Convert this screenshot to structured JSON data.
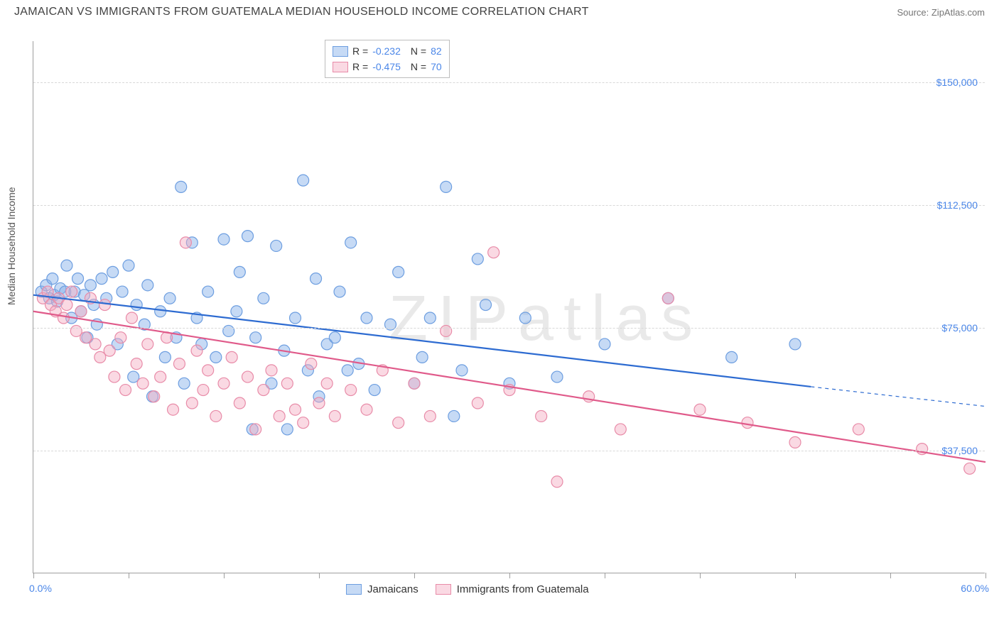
{
  "title": "JAMAICAN VS IMMIGRANTS FROM GUATEMALA MEDIAN HOUSEHOLD INCOME CORRELATION CHART",
  "source": "Source: ZipAtlas.com",
  "ylabel": "Median Household Income",
  "watermark": "ZIPatlas",
  "chart": {
    "type": "scatter",
    "xlim": [
      0.0,
      60.0
    ],
    "ylim": [
      0,
      162500
    ],
    "yticks": [
      37500,
      75000,
      112500,
      150000
    ],
    "ytick_labels": [
      "$37,500",
      "$75,000",
      "$112,500",
      "$150,000"
    ],
    "xticks": [
      0,
      6,
      12,
      18,
      24,
      30,
      36,
      42,
      48,
      54,
      60
    ],
    "xaxis_left_label": "0.0%",
    "xaxis_right_label": "60.0%",
    "background_color": "#ffffff",
    "grid_color": "#d8d8d8",
    "axis_color": "#9e9e9e",
    "text_color": "#555555",
    "value_color": "#4a86e8",
    "marker_radius": 8,
    "marker_stroke_width": 1.2,
    "trend_line_width": 2.2,
    "series": [
      {
        "name": "Jamaicans",
        "fill": "rgba(129,174,233,0.45)",
        "stroke": "#6d9ee0",
        "line_color": "#2d6bd1",
        "R": "-0.232",
        "N": "82",
        "trend": {
          "x1": 0,
          "y1": 85000,
          "x2": 49,
          "y2": 57000,
          "dash_x2": 60,
          "dash_y2": 51000
        },
        "points": [
          [
            0.5,
            86000
          ],
          [
            0.8,
            88000
          ],
          [
            1.0,
            84000
          ],
          [
            1.2,
            90000
          ],
          [
            1.3,
            85000
          ],
          [
            1.5,
            83000
          ],
          [
            1.7,
            87000
          ],
          [
            2.0,
            86000
          ],
          [
            2.1,
            94000
          ],
          [
            2.4,
            78000
          ],
          [
            2.6,
            86000
          ],
          [
            2.8,
            90000
          ],
          [
            3.0,
            80000
          ],
          [
            3.2,
            85000
          ],
          [
            3.4,
            72000
          ],
          [
            3.6,
            88000
          ],
          [
            3.8,
            82000
          ],
          [
            4.0,
            76000
          ],
          [
            4.3,
            90000
          ],
          [
            4.6,
            84000
          ],
          [
            5.0,
            92000
          ],
          [
            5.3,
            70000
          ],
          [
            5.6,
            86000
          ],
          [
            6.0,
            94000
          ],
          [
            6.3,
            60000
          ],
          [
            6.5,
            82000
          ],
          [
            7.0,
            76000
          ],
          [
            7.2,
            88000
          ],
          [
            7.5,
            54000
          ],
          [
            8.0,
            80000
          ],
          [
            8.3,
            66000
          ],
          [
            8.6,
            84000
          ],
          [
            9.0,
            72000
          ],
          [
            9.3,
            118000
          ],
          [
            9.5,
            58000
          ],
          [
            10.0,
            101000
          ],
          [
            10.3,
            78000
          ],
          [
            10.6,
            70000
          ],
          [
            11.0,
            86000
          ],
          [
            11.5,
            66000
          ],
          [
            12.0,
            102000
          ],
          [
            12.3,
            74000
          ],
          [
            12.8,
            80000
          ],
          [
            13.0,
            92000
          ],
          [
            13.5,
            103000
          ],
          [
            14.0,
            72000
          ],
          [
            14.5,
            84000
          ],
          [
            15.0,
            58000
          ],
          [
            15.3,
            100000
          ],
          [
            15.8,
            68000
          ],
          [
            16.0,
            44000
          ],
          [
            16.5,
            78000
          ],
          [
            17.0,
            120000
          ],
          [
            17.3,
            62000
          ],
          [
            17.8,
            90000
          ],
          [
            18.0,
            54000
          ],
          [
            18.5,
            70000
          ],
          [
            19.0,
            72000
          ],
          [
            19.3,
            86000
          ],
          [
            19.8,
            62000
          ],
          [
            20.0,
            101000
          ],
          [
            20.5,
            64000
          ],
          [
            21.0,
            78000
          ],
          [
            21.5,
            56000
          ],
          [
            22.5,
            76000
          ],
          [
            23.0,
            92000
          ],
          [
            24.0,
            58000
          ],
          [
            24.5,
            66000
          ],
          [
            25.0,
            78000
          ],
          [
            26.0,
            118000
          ],
          [
            26.5,
            48000
          ],
          [
            27.0,
            62000
          ],
          [
            28.0,
            96000
          ],
          [
            28.5,
            82000
          ],
          [
            30.0,
            58000
          ],
          [
            31.0,
            78000
          ],
          [
            33.0,
            60000
          ],
          [
            36.0,
            70000
          ],
          [
            40.0,
            84000
          ],
          [
            44.0,
            66000
          ],
          [
            48.0,
            70000
          ],
          [
            13.8,
            44000
          ]
        ]
      },
      {
        "name": "Immigrants from Guatemala",
        "fill": "rgba(244,170,192,0.45)",
        "stroke": "#e88ba8",
        "line_color": "#e05a8a",
        "R": "-0.475",
        "N": "70",
        "trend": {
          "x1": 0,
          "y1": 80000,
          "x2": 60,
          "y2": 34000
        },
        "points": [
          [
            0.6,
            84000
          ],
          [
            0.9,
            86000
          ],
          [
            1.1,
            82000
          ],
          [
            1.4,
            80000
          ],
          [
            1.6,
            84000
          ],
          [
            1.9,
            78000
          ],
          [
            2.1,
            82000
          ],
          [
            2.4,
            86000
          ],
          [
            2.7,
            74000
          ],
          [
            3.0,
            80000
          ],
          [
            3.3,
            72000
          ],
          [
            3.6,
            84000
          ],
          [
            3.9,
            70000
          ],
          [
            4.2,
            66000
          ],
          [
            4.5,
            82000
          ],
          [
            4.8,
            68000
          ],
          [
            5.1,
            60000
          ],
          [
            5.5,
            72000
          ],
          [
            5.8,
            56000
          ],
          [
            6.2,
            78000
          ],
          [
            6.5,
            64000
          ],
          [
            6.9,
            58000
          ],
          [
            7.2,
            70000
          ],
          [
            7.6,
            54000
          ],
          [
            8.0,
            60000
          ],
          [
            8.4,
            72000
          ],
          [
            8.8,
            50000
          ],
          [
            9.2,
            64000
          ],
          [
            9.6,
            101000
          ],
          [
            10.0,
            52000
          ],
          [
            10.3,
            68000
          ],
          [
            10.7,
            56000
          ],
          [
            11.0,
            62000
          ],
          [
            11.5,
            48000
          ],
          [
            12.0,
            58000
          ],
          [
            12.5,
            66000
          ],
          [
            13.0,
            52000
          ],
          [
            13.5,
            60000
          ],
          [
            14.0,
            44000
          ],
          [
            14.5,
            56000
          ],
          [
            15.0,
            62000
          ],
          [
            15.5,
            48000
          ],
          [
            16.0,
            58000
          ],
          [
            16.5,
            50000
          ],
          [
            17.0,
            46000
          ],
          [
            17.5,
            64000
          ],
          [
            18.0,
            52000
          ],
          [
            18.5,
            58000
          ],
          [
            19.0,
            48000
          ],
          [
            20.0,
            56000
          ],
          [
            21.0,
            50000
          ],
          [
            22.0,
            62000
          ],
          [
            23.0,
            46000
          ],
          [
            24.0,
            58000
          ],
          [
            25.0,
            48000
          ],
          [
            26.0,
            74000
          ],
          [
            28.0,
            52000
          ],
          [
            29.0,
            98000
          ],
          [
            30.0,
            56000
          ],
          [
            32.0,
            48000
          ],
          [
            33.0,
            28000
          ],
          [
            35.0,
            54000
          ],
          [
            37.0,
            44000
          ],
          [
            40.0,
            84000
          ],
          [
            42.0,
            50000
          ],
          [
            45.0,
            46000
          ],
          [
            48.0,
            40000
          ],
          [
            52.0,
            44000
          ],
          [
            56.0,
            38000
          ],
          [
            59.0,
            32000
          ]
        ]
      }
    ]
  },
  "legend_bottom": [
    {
      "label": "Jamaicans",
      "series_idx": 0
    },
    {
      "label": "Immigrants from Guatemala",
      "series_idx": 1
    }
  ]
}
